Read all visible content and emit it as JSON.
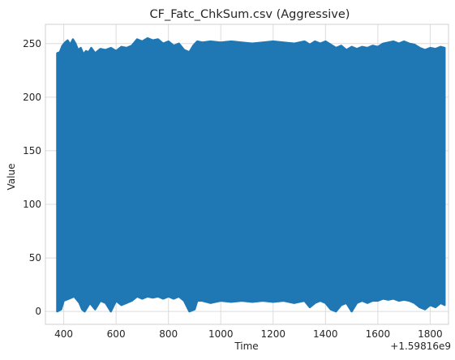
{
  "chart_data": {
    "type": "line",
    "title": "CF_Fatc_ChkSum.csv (Aggressive)",
    "xlabel": "Time",
    "ylabel": "Value",
    "x_offset_label": "+1.59816e9",
    "xlim": [
      330,
      1870
    ],
    "ylim": [
      -12,
      268
    ],
    "grid": true,
    "x_ticks": [
      400,
      600,
      800,
      1000,
      1200,
      1400,
      1600,
      1800
    ],
    "x_tick_labels": [
      "400",
      "600",
      "800",
      "1000",
      "1200",
      "1400",
      "1600",
      "1800"
    ],
    "y_ticks": [
      0,
      50,
      100,
      150,
      200,
      250
    ],
    "y_tick_labels": [
      "0",
      "50",
      "100",
      "150",
      "200",
      "250"
    ],
    "series": [
      {
        "name": "Value",
        "color": "#1f77b4",
        "x_range": [
          375,
          1855
        ],
        "top_envelope": [
          [
            375,
            241
          ],
          [
            385,
            242
          ],
          [
            395,
            248
          ],
          [
            405,
            251
          ],
          [
            415,
            253
          ],
          [
            425,
            249
          ],
          [
            435,
            254
          ],
          [
            445,
            250
          ],
          [
            455,
            244
          ],
          [
            465,
            246
          ],
          [
            475,
            240
          ],
          [
            485,
            243
          ],
          [
            495,
            242
          ],
          [
            505,
            246
          ],
          [
            520,
            241
          ],
          [
            540,
            245
          ],
          [
            560,
            244
          ],
          [
            580,
            246
          ],
          [
            600,
            243
          ],
          [
            620,
            247
          ],
          [
            640,
            246
          ],
          [
            660,
            248
          ],
          [
            680,
            254
          ],
          [
            700,
            252
          ],
          [
            720,
            255
          ],
          [
            740,
            253
          ],
          [
            760,
            254
          ],
          [
            780,
            250
          ],
          [
            800,
            252
          ],
          [
            820,
            248
          ],
          [
            840,
            250
          ],
          [
            860,
            244
          ],
          [
            880,
            242
          ],
          [
            895,
            248
          ],
          [
            910,
            252
          ],
          [
            930,
            251
          ],
          [
            960,
            252
          ],
          [
            1000,
            251
          ],
          [
            1040,
            252
          ],
          [
            1080,
            251
          ],
          [
            1120,
            250
          ],
          [
            1160,
            251
          ],
          [
            1200,
            252
          ],
          [
            1240,
            251
          ],
          [
            1280,
            250
          ],
          [
            1320,
            252
          ],
          [
            1340,
            249
          ],
          [
            1360,
            252
          ],
          [
            1380,
            250
          ],
          [
            1400,
            252
          ],
          [
            1420,
            249
          ],
          [
            1440,
            246
          ],
          [
            1460,
            248
          ],
          [
            1480,
            244
          ],
          [
            1500,
            247
          ],
          [
            1520,
            245
          ],
          [
            1540,
            247
          ],
          [
            1560,
            246
          ],
          [
            1580,
            248
          ],
          [
            1600,
            247
          ],
          [
            1620,
            250
          ],
          [
            1640,
            251
          ],
          [
            1660,
            252
          ],
          [
            1680,
            250
          ],
          [
            1700,
            252
          ],
          [
            1720,
            250
          ],
          [
            1740,
            249
          ],
          [
            1760,
            246
          ],
          [
            1780,
            244
          ],
          [
            1800,
            246
          ],
          [
            1820,
            245
          ],
          [
            1840,
            247
          ],
          [
            1855,
            246
          ]
        ],
        "bottom_envelope": [
          [
            375,
            0
          ],
          [
            390,
            2
          ],
          [
            400,
            10
          ],
          [
            420,
            12
          ],
          [
            440,
            14
          ],
          [
            460,
            8
          ],
          [
            470,
            2
          ],
          [
            480,
            0
          ],
          [
            500,
            8
          ],
          [
            520,
            2
          ],
          [
            540,
            10
          ],
          [
            560,
            8
          ],
          [
            580,
            0
          ],
          [
            600,
            10
          ],
          [
            620,
            6
          ],
          [
            640,
            8
          ],
          [
            660,
            10
          ],
          [
            680,
            14
          ],
          [
            700,
            12
          ],
          [
            720,
            14
          ],
          [
            740,
            13
          ],
          [
            760,
            14
          ],
          [
            780,
            12
          ],
          [
            800,
            14
          ],
          [
            820,
            12
          ],
          [
            840,
            14
          ],
          [
            860,
            10
          ],
          [
            880,
            0
          ],
          [
            900,
            2
          ],
          [
            910,
            10
          ],
          [
            930,
            10
          ],
          [
            960,
            8
          ],
          [
            1000,
            10
          ],
          [
            1040,
            9
          ],
          [
            1080,
            10
          ],
          [
            1120,
            9
          ],
          [
            1160,
            10
          ],
          [
            1200,
            9
          ],
          [
            1240,
            10
          ],
          [
            1280,
            8
          ],
          [
            1320,
            10
          ],
          [
            1340,
            4
          ],
          [
            1360,
            8
          ],
          [
            1380,
            10
          ],
          [
            1400,
            8
          ],
          [
            1420,
            2
          ],
          [
            1440,
            0
          ],
          [
            1460,
            6
          ],
          [
            1480,
            8
          ],
          [
            1500,
            0
          ],
          [
            1520,
            8
          ],
          [
            1540,
            10
          ],
          [
            1560,
            8
          ],
          [
            1580,
            10
          ],
          [
            1600,
            10
          ],
          [
            1620,
            12
          ],
          [
            1640,
            11
          ],
          [
            1660,
            12
          ],
          [
            1680,
            10
          ],
          [
            1700,
            11
          ],
          [
            1720,
            10
          ],
          [
            1740,
            8
          ],
          [
            1760,
            4
          ],
          [
            1780,
            2
          ],
          [
            1800,
            6
          ],
          [
            1820,
            4
          ],
          [
            1840,
            8
          ],
          [
            1855,
            6
          ]
        ]
      }
    ]
  }
}
